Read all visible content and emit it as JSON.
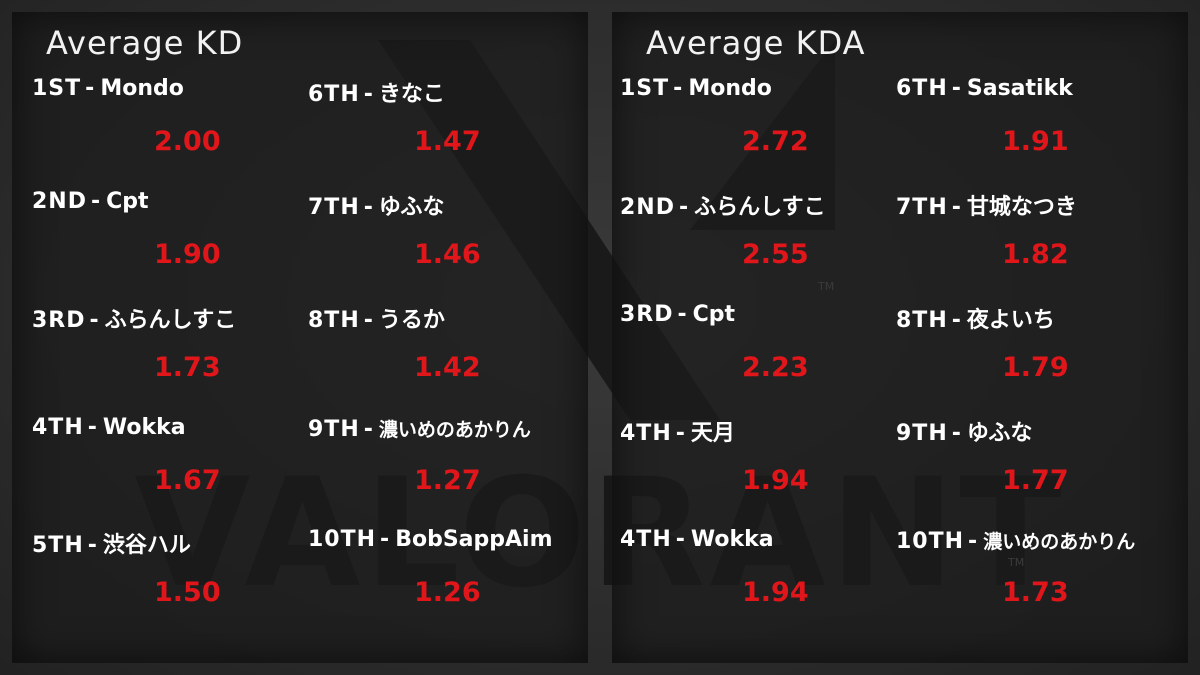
{
  "panels": [
    {
      "title": "Average KD",
      "entries": [
        {
          "rank": "1ST",
          "name": "Mondo",
          "value": "2.00"
        },
        {
          "rank": "2ND",
          "name": "Cpt",
          "value": "1.90"
        },
        {
          "rank": "3RD",
          "name": "ふらんしすこ",
          "value": "1.73"
        },
        {
          "rank": "4TH",
          "name": "Wokka",
          "value": "1.67"
        },
        {
          "rank": "5TH",
          "name": "渋谷ハル",
          "value": "1.50"
        },
        {
          "rank": "6TH",
          "name": "きなこ",
          "value": "1.47"
        },
        {
          "rank": "7TH",
          "name": "ゆふな",
          "value": "1.46"
        },
        {
          "rank": "8TH",
          "name": "うるか",
          "value": "1.42"
        },
        {
          "rank": "9TH",
          "name": "濃いめのあかりん",
          "value": "1.27"
        },
        {
          "rank": "10TH",
          "name": "BobSappAim",
          "value": "1.26"
        }
      ]
    },
    {
      "title": "Average KDA",
      "entries": [
        {
          "rank": "1ST",
          "name": "Mondo",
          "value": "2.72"
        },
        {
          "rank": "2ND",
          "name": "ふらんしすこ",
          "value": "2.55"
        },
        {
          "rank": "3RD",
          "name": "Cpt",
          "value": "2.23"
        },
        {
          "rank": "4TH",
          "name": "天月",
          "value": "1.94"
        },
        {
          "rank": "4TH",
          "name": "Wokka",
          "value": "1.94"
        },
        {
          "rank": "6TH",
          "name": "Sasatikk",
          "value": "1.91"
        },
        {
          "rank": "7TH",
          "name": "甘城なつき",
          "value": "1.82"
        },
        {
          "rank": "8TH",
          "name": "夜よいち",
          "value": "1.79"
        },
        {
          "rank": "9TH",
          "name": "ゆふな",
          "value": "1.77"
        },
        {
          "rank": "10TH",
          "name": "濃いめのあかりん",
          "value": "1.73"
        }
      ]
    }
  ],
  "separator": "-",
  "logo": {
    "text": "VALORANT",
    "trademark": "TM"
  },
  "colors": {
    "value": "#e0161b",
    "text": "#ffffff",
    "background": "#2f2f2f"
  }
}
